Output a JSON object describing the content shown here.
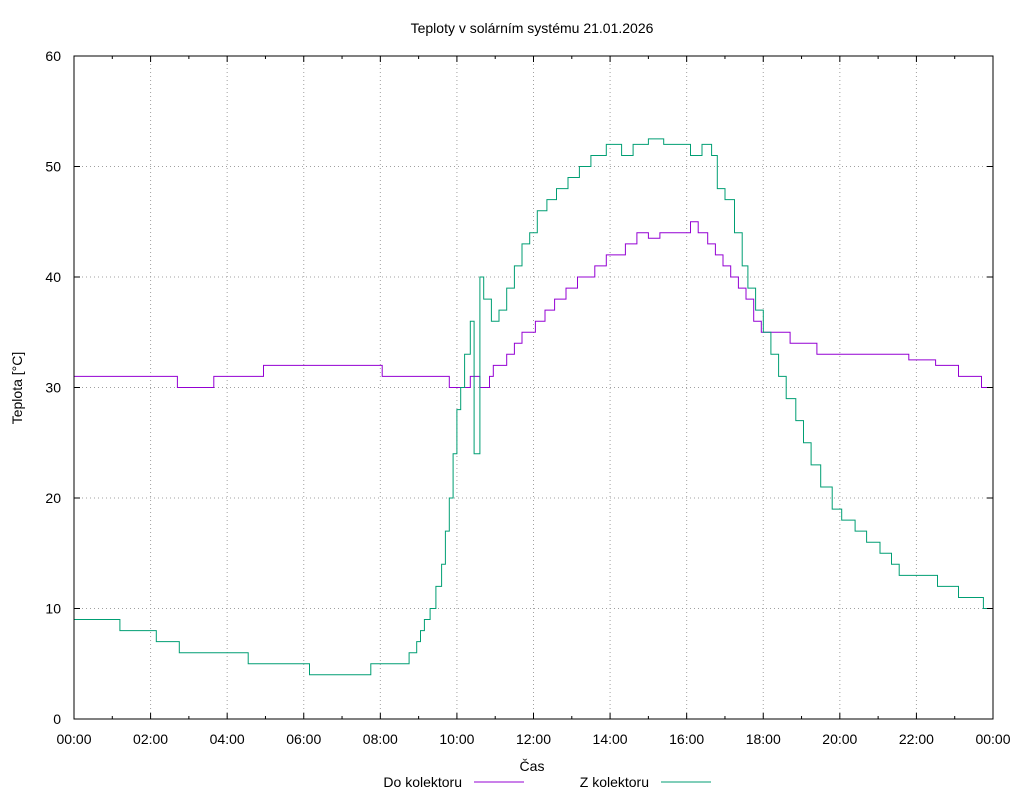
{
  "chart_data": {
    "type": "line",
    "title": "Teploty v solárním systému 21.01.2026",
    "xlabel": "Čas",
    "ylabel": "Teplota [°C]",
    "xlim": [
      0,
      24
    ],
    "ylim": [
      0,
      60
    ],
    "grid": true,
    "legend_position": "bottom",
    "y_ticks": [
      "0",
      "10",
      "20",
      "30",
      "40",
      "50",
      "60"
    ],
    "x_ticks": [
      "00:00",
      "02:00",
      "04:00",
      "06:00",
      "08:00",
      "10:00",
      "12:00",
      "14:00",
      "16:00",
      "18:00",
      "20:00",
      "22:00",
      "00:00"
    ],
    "series": [
      {
        "name": "Do kolektoru",
        "color": "#9400d3",
        "points": [
          [
            0,
            31
          ],
          [
            2.65,
            31
          ],
          [
            2.7,
            30
          ],
          [
            3.6,
            30
          ],
          [
            3.65,
            31
          ],
          [
            4.9,
            31
          ],
          [
            4.95,
            32
          ],
          [
            8.0,
            32
          ],
          [
            8.05,
            31
          ],
          [
            9.75,
            31
          ],
          [
            9.8,
            30
          ],
          [
            10.3,
            30
          ],
          [
            10.35,
            31
          ],
          [
            10.6,
            30
          ],
          [
            10.85,
            31
          ],
          [
            10.95,
            32
          ],
          [
            11.3,
            33
          ],
          [
            11.5,
            34
          ],
          [
            11.7,
            35
          ],
          [
            12.05,
            36
          ],
          [
            12.3,
            37
          ],
          [
            12.55,
            38
          ],
          [
            12.85,
            39
          ],
          [
            13.15,
            40
          ],
          [
            13.6,
            41
          ],
          [
            13.9,
            42
          ],
          [
            14.4,
            43
          ],
          [
            14.7,
            44
          ],
          [
            15.0,
            43.5
          ],
          [
            15.3,
            44
          ],
          [
            15.9,
            44
          ],
          [
            16.1,
            45
          ],
          [
            16.3,
            44
          ],
          [
            16.55,
            43
          ],
          [
            16.75,
            42
          ],
          [
            16.95,
            41
          ],
          [
            17.15,
            40
          ],
          [
            17.35,
            39
          ],
          [
            17.55,
            38
          ],
          [
            17.75,
            36
          ],
          [
            17.95,
            35
          ],
          [
            18.7,
            34
          ],
          [
            19.4,
            33
          ],
          [
            21.5,
            33
          ],
          [
            21.8,
            32.5
          ],
          [
            22.2,
            32.5
          ],
          [
            22.5,
            32
          ],
          [
            23.1,
            31
          ],
          [
            23.7,
            30
          ],
          [
            24,
            30
          ]
        ]
      },
      {
        "name": "Z kolektoru",
        "color": "#009e73",
        "points": [
          [
            0,
            9
          ],
          [
            1.15,
            9
          ],
          [
            1.2,
            8
          ],
          [
            2.1,
            8
          ],
          [
            2.15,
            7
          ],
          [
            2.7,
            7
          ],
          [
            2.75,
            6
          ],
          [
            4.5,
            6
          ],
          [
            4.55,
            5
          ],
          [
            6.1,
            5
          ],
          [
            6.15,
            4
          ],
          [
            7.7,
            4
          ],
          [
            7.75,
            5
          ],
          [
            8.6,
            5
          ],
          [
            8.75,
            6
          ],
          [
            8.95,
            7
          ],
          [
            9.05,
            8
          ],
          [
            9.15,
            9
          ],
          [
            9.3,
            10
          ],
          [
            9.45,
            12
          ],
          [
            9.6,
            14
          ],
          [
            9.7,
            17
          ],
          [
            9.8,
            20
          ],
          [
            9.9,
            24
          ],
          [
            10.0,
            28
          ],
          [
            10.1,
            30
          ],
          [
            10.2,
            33
          ],
          [
            10.35,
            36
          ],
          [
            10.45,
            24
          ],
          [
            10.6,
            40
          ],
          [
            10.7,
            38
          ],
          [
            10.9,
            36
          ],
          [
            11.1,
            37
          ],
          [
            11.3,
            39
          ],
          [
            11.5,
            41
          ],
          [
            11.7,
            43
          ],
          [
            11.9,
            44
          ],
          [
            12.1,
            46
          ],
          [
            12.35,
            47
          ],
          [
            12.6,
            48
          ],
          [
            12.9,
            49
          ],
          [
            13.2,
            50
          ],
          [
            13.5,
            51
          ],
          [
            13.9,
            52
          ],
          [
            14.3,
            51
          ],
          [
            14.6,
            52
          ],
          [
            15.0,
            52.5
          ],
          [
            15.4,
            52
          ],
          [
            15.8,
            52
          ],
          [
            16.1,
            51
          ],
          [
            16.4,
            52
          ],
          [
            16.65,
            51
          ],
          [
            16.8,
            48
          ],
          [
            17.0,
            47
          ],
          [
            17.25,
            44
          ],
          [
            17.45,
            41
          ],
          [
            17.6,
            39
          ],
          [
            17.8,
            37
          ],
          [
            18.0,
            35
          ],
          [
            18.2,
            33
          ],
          [
            18.4,
            31
          ],
          [
            18.6,
            29
          ],
          [
            18.85,
            27
          ],
          [
            19.05,
            25
          ],
          [
            19.25,
            23
          ],
          [
            19.5,
            21
          ],
          [
            19.8,
            19
          ],
          [
            20.05,
            18
          ],
          [
            20.4,
            17
          ],
          [
            20.7,
            16
          ],
          [
            21.05,
            15
          ],
          [
            21.35,
            14
          ],
          [
            21.55,
            13
          ],
          [
            22.05,
            13
          ],
          [
            22.55,
            12
          ],
          [
            23.0,
            12
          ],
          [
            23.1,
            11
          ],
          [
            23.7,
            11
          ],
          [
            23.75,
            10
          ],
          [
            24,
            10
          ]
        ]
      }
    ]
  }
}
